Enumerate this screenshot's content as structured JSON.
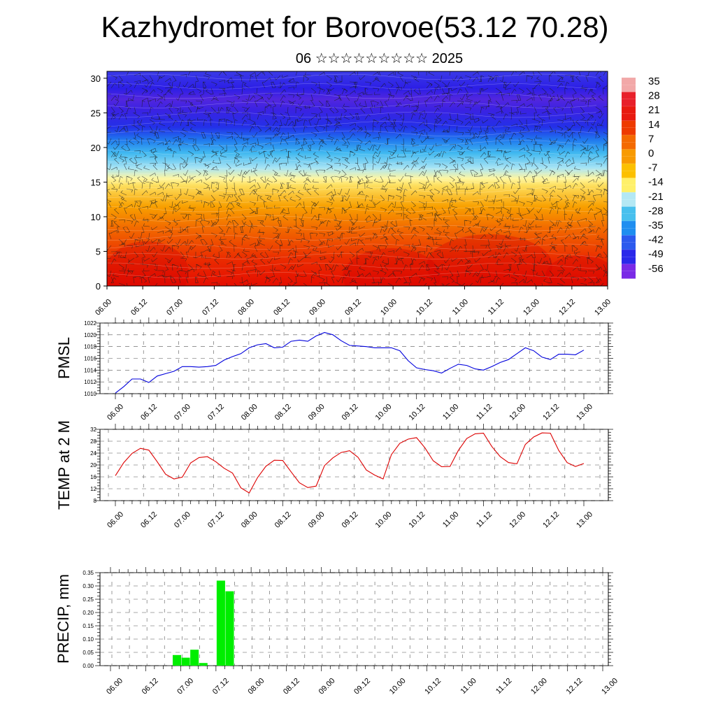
{
  "title": "Kazhydromet for Borovoe(53.12 70.28)",
  "subtitle": "06 ☆☆☆☆☆☆☆☆☆ 2025",
  "colors": {
    "pmsl_line": "#0000dd",
    "temp_line": "#dd0000",
    "precip_bar": "#00ee00",
    "frame": "#000000"
  },
  "chart_data": [
    {
      "type": "heatmap",
      "name": "upper-air temperature cross-section",
      "x_ticks": [
        "06.00",
        "06.12",
        "07.00",
        "07.12",
        "08.00",
        "08.12",
        "09.00",
        "09.12",
        "10.00",
        "10.12",
        "11.00",
        "11.12",
        "12.00",
        "12.12",
        "13.00"
      ],
      "y_ticks": [
        0,
        5,
        10,
        15,
        20,
        25,
        30
      ],
      "ylim": [
        0,
        31
      ],
      "colorbar_labels": [
        "35",
        "28",
        "21",
        "14",
        "7",
        "0",
        "-7",
        "-14",
        "-21",
        "-28",
        "-35",
        "-42",
        "-49",
        "-56"
      ],
      "colorbar_colors": [
        "#f2a8a8",
        "#e8202a",
        "#e81a10",
        "#ee3a00",
        "#f46a00",
        "#f89a00",
        "#fcc000",
        "#fff06a",
        "#b4e8f4",
        "#48c0ee",
        "#1f8ef0",
        "#2c5aee",
        "#2a28ea",
        "#7a2ae6"
      ],
      "overlay": "wind barbs",
      "field_description_levels": {
        "0-5": "red (hot near surface)",
        "8-12": "orange",
        "15-16": "yellow",
        "17-21": "light to mid blue",
        "22-31": "deep blue / violet"
      }
    },
    {
      "type": "line",
      "ylabel": "PMSL",
      "ylim": [
        1010,
        1022
      ],
      "y_ticks": [
        1010,
        1012,
        1014,
        1016,
        1018,
        1020,
        1022
      ],
      "x_ticks": [
        "06.00",
        "06.12",
        "07.00",
        "07.12",
        "08.00",
        "08.12",
        "09.00",
        "09.12",
        "10.00",
        "10.12",
        "11.00",
        "11.12",
        "12.00",
        "12.12",
        "13.00"
      ],
      "x_step_hours": 3,
      "series": [
        {
          "values": [
            1010.1,
            1011.2,
            1012.5,
            1012.5,
            1011.9,
            1013.0,
            1013.4,
            1013.8,
            1014.6,
            1014.6,
            1014.5,
            1014.6,
            1014.8,
            1015.7,
            1016.3,
            1016.8,
            1017.8,
            1018.3,
            1018.5,
            1017.8,
            1017.9,
            1018.9,
            1019.1,
            1018.9,
            1019.8,
            1020.4,
            1020.0,
            1019.0,
            1018.2,
            1018.1,
            1018.0,
            1017.8,
            1017.8,
            1017.8,
            1017.3,
            1015.6,
            1014.4,
            1014.1,
            1013.9,
            1013.5,
            1014.3,
            1015.0,
            1014.8,
            1014.2,
            1014.0,
            1014.6,
            1015.3,
            1015.8,
            1016.8,
            1017.8,
            1017.3,
            1016.2,
            1015.8,
            1016.7,
            1016.7,
            1016.6,
            1017.4
          ]
        }
      ]
    },
    {
      "type": "line",
      "ylabel": "TEMP at 2 M",
      "ylim": [
        8,
        32
      ],
      "y_ticks": [
        8,
        12,
        16,
        20,
        24,
        28,
        32
      ],
      "x_ticks": [
        "06.00",
        "06.12",
        "07.00",
        "07.12",
        "08.00",
        "08.12",
        "09.00",
        "09.12",
        "10.00",
        "10.12",
        "11.00",
        "11.12",
        "12.00",
        "12.12",
        "13.00"
      ],
      "x_step_hours": 3,
      "series": [
        {
          "values": [
            16.4,
            20.8,
            23.9,
            25.6,
            25.0,
            21.1,
            16.9,
            15.3,
            15.9,
            20.7,
            22.5,
            22.8,
            21.1,
            18.9,
            17.3,
            12.3,
            10.6,
            15.8,
            19.6,
            21.6,
            21.5,
            17.7,
            14.0,
            12.4,
            12.9,
            19.8,
            22.4,
            24.2,
            24.8,
            22.6,
            18.3,
            16.6,
            15.3,
            23.5,
            27.3,
            28.7,
            29.2,
            25.8,
            21.4,
            19.4,
            19.5,
            24.9,
            28.9,
            30.5,
            30.7,
            26.2,
            22.8,
            20.8,
            20.4,
            26.9,
            29.4,
            30.8,
            30.7,
            24.9,
            20.8,
            19.5,
            20.5
          ]
        }
      ]
    },
    {
      "type": "bar",
      "ylabel": "PRECIP, mm",
      "ylim": [
        0,
        0.35
      ],
      "y_ticks": [
        "0.00",
        "0.05",
        "0.10",
        "0.15",
        "0.20",
        "0.25",
        "0.30",
        "0.35"
      ],
      "x_ticks": [
        "06.00",
        "06.12",
        "07.00",
        "07.12",
        "08.00",
        "08.12",
        "09.00",
        "09.12",
        "10.00",
        "10.12",
        "11.00",
        "11.12",
        "12.00",
        "12.12",
        "13.00"
      ],
      "x_step_hours": 3,
      "values": [
        0,
        0,
        0,
        0,
        0,
        0,
        0,
        0.04,
        0.03,
        0.06,
        0.01,
        0,
        0.32,
        0.28,
        0,
        0,
        0,
        0,
        0,
        0,
        0,
        0,
        0,
        0,
        0,
        0,
        0,
        0,
        0,
        0,
        0,
        0,
        0,
        0,
        0,
        0,
        0,
        0,
        0,
        0,
        0,
        0,
        0,
        0,
        0,
        0,
        0,
        0,
        0,
        0,
        0,
        0,
        0,
        0,
        0,
        0,
        0
      ]
    }
  ]
}
